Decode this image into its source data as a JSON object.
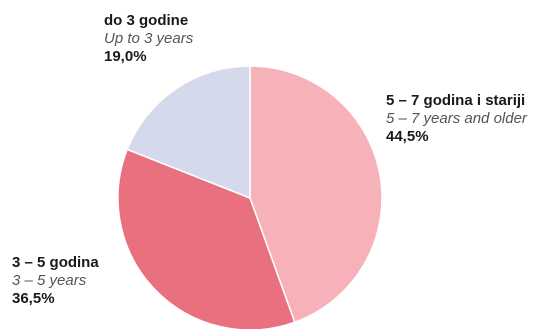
{
  "chart_data": {
    "type": "pie",
    "slices": [
      {
        "label": "5 – 7 godina i stariji",
        "sublabel": "5 – 7 years and older",
        "value": 44.5,
        "value_text": "44,5%",
        "color": "#f7b1b8"
      },
      {
        "label": "3 – 5 godina",
        "sublabel": "3 – 5 years",
        "value": 36.5,
        "value_text": "36,5%",
        "color": "#e8707f"
      },
      {
        "label": "do 3 godine",
        "sublabel": "Up to 3 years",
        "value": 19.0,
        "value_text": "19,0%",
        "color": "#d4daeb"
      }
    ]
  }
}
